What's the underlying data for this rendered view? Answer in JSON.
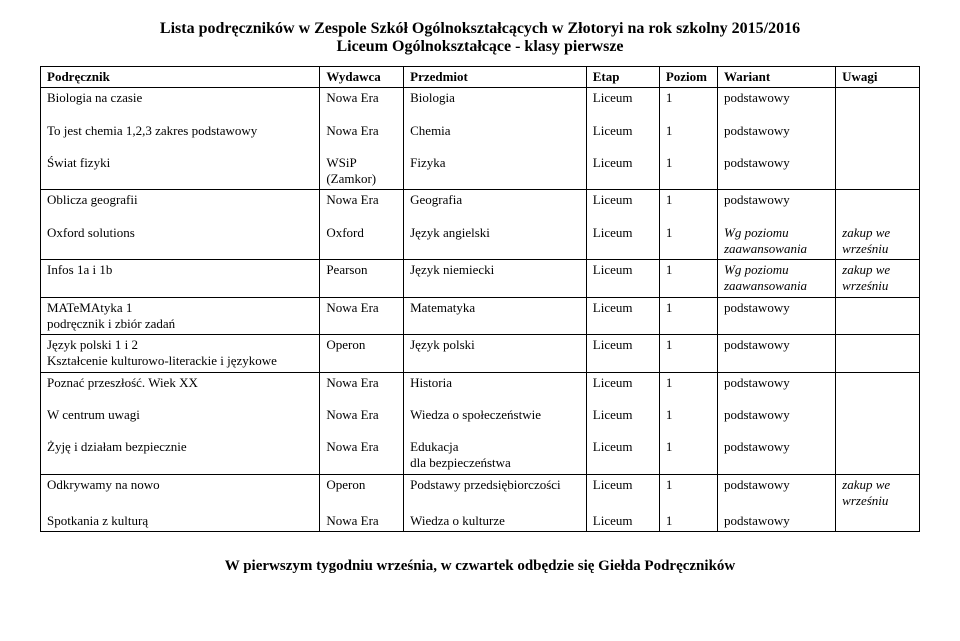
{
  "header": {
    "title": "Lista podręczników w Zespole Szkół Ogólnokształcących w Złotoryi  na rok szkolny 2015/2016",
    "subtitle": "Liceum Ogólnokształcące - klasy pierwsze"
  },
  "columns": {
    "podrecznik": "Podręcznik",
    "wydawca": "Wydawca",
    "przedmiot": "Przedmiot",
    "etap": "Etap",
    "poziom": "Poziom",
    "wariant": "Wariant",
    "uwagi": "Uwagi"
  },
  "rows": {
    "r1": {
      "pod": "Biologia na czasie",
      "wyd": "Nowa Era",
      "prz": "Biologia",
      "etap": "Liceum",
      "poz": "1",
      "war": "podstawowy",
      "uw": ""
    },
    "r2": {
      "pod": "To jest chemia 1,2,3 zakres podstawowy",
      "wyd": "Nowa Era",
      "prz": "Chemia",
      "etap": "Liceum",
      "poz": "1",
      "war": "podstawowy",
      "uw": ""
    },
    "r3": {
      "pod": "Świat fizyki",
      "wyd_a": "WSiP",
      "wyd_b": "(Zamkor)",
      "prz": "Fizyka",
      "etap": "Liceum",
      "poz": "1",
      "war": "podstawowy",
      "uw": ""
    },
    "r4": {
      "pod": "Oblicza geografii",
      "wyd": "Nowa Era",
      "prz": "Geografia",
      "etap": "Liceum",
      "poz": "1",
      "war": "podstawowy",
      "uw": ""
    },
    "r5": {
      "pod": "Oxford solutions",
      "wyd": "Oxford",
      "prz": "Język angielski",
      "etap": "Liceum",
      "poz": "1",
      "war_a": "Wg poziomu",
      "war_b": "zaawansowania",
      "uw_a": "zakup we",
      "uw_b": "wrześniu"
    },
    "r6": {
      "pod": "Infos 1a i 1b",
      "wyd": "Pearson",
      "prz": "Język niemiecki",
      "etap": "Liceum",
      "poz": "1",
      "war_a": "Wg poziomu",
      "war_b": "zaawansowania",
      "uw_a": "zakup we",
      "uw_b": "wrześniu"
    },
    "r7": {
      "pod_a": "MATeMAtyka 1",
      "pod_b": "podręcznik i zbiór zadań",
      "wyd": "Nowa Era",
      "prz": "Matematyka",
      "etap": "Liceum",
      "poz": "1",
      "war": "podstawowy",
      "uw": ""
    },
    "r8": {
      "pod_a": "Język polski 1 i 2",
      "pod_b": "Kształcenie kulturowo-literackie i językowe",
      "wyd": "Operon",
      "prz": "Język polski",
      "etap": "Liceum",
      "poz": "1",
      "war": "podstawowy",
      "uw": ""
    },
    "r9": {
      "pod": "Poznać przeszłość. Wiek XX",
      "wyd": "Nowa Era",
      "prz": "Historia",
      "etap": "Liceum",
      "poz": "1",
      "war": "podstawowy",
      "uw": ""
    },
    "r10": {
      "pod": "W centrum uwagi",
      "wyd": "Nowa Era",
      "prz": "Wiedza o społeczeństwie",
      "etap": "Liceum",
      "poz": "1",
      "war": "podstawowy",
      "uw": ""
    },
    "r11": {
      "pod": "Żyję i działam bezpiecznie",
      "wyd": "Nowa Era",
      "prz_a": "Edukacja",
      "prz_b": "dla bezpieczeństwa",
      "etap": "Liceum",
      "poz": "1",
      "war": "podstawowy",
      "uw": ""
    },
    "r12": {
      "pod": "Odkrywamy na nowo",
      "wyd": "Operon",
      "prz": "Podstawy przedsiębiorczości",
      "etap": "Liceum",
      "poz": "1",
      "war": "podstawowy",
      "uw_a": "zakup we",
      "uw_b": "wrześniu"
    },
    "r13": {
      "pod": "Spotkania z kulturą",
      "wyd": "Nowa Era",
      "prz": "Wiedza o kulturze",
      "etap": "Liceum",
      "poz": "1",
      "war": "podstawowy",
      "uw": ""
    }
  },
  "footer": "W pierwszym tygodniu września, w czwartek odbędzie się Giełda Podręczników"
}
